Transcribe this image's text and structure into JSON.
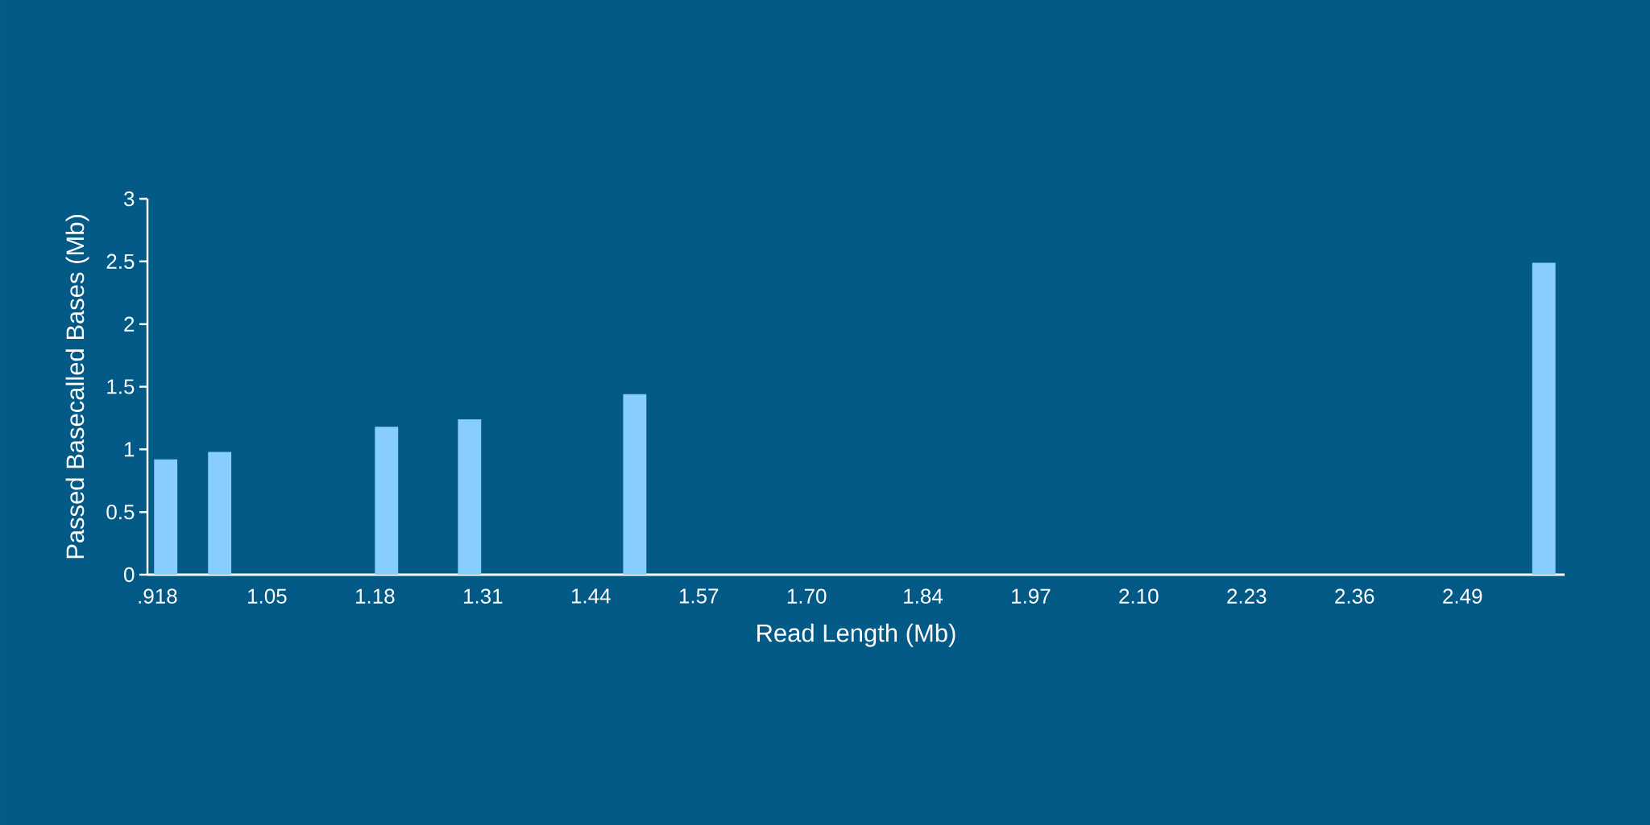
{
  "chart_data": {
    "type": "bar",
    "xlabel": "Read Length (Mb)",
    "ylabel": "Passed Basecalled Bases (Mb)",
    "x": [
      0.928,
      0.993,
      1.194,
      1.294,
      1.493,
      2.588
    ],
    "values": [
      0.92,
      0.98,
      1.18,
      1.24,
      1.44,
      2.49
    ],
    "color": "#87cefe",
    "xlim": [
      0.906,
      2.613
    ],
    "xticks": [
      {
        "value": 0.918,
        "label": ".918"
      },
      1.05,
      1.18,
      1.31,
      1.44,
      1.57,
      {
        "value": 1.7,
        "label": "1.70"
      },
      1.84,
      1.97,
      {
        "value": 2.1,
        "label": "2.10"
      },
      2.23,
      2.36,
      2.49
    ],
    "ylim": [
      0,
      3
    ],
    "yticks": [
      0,
      0.5,
      1,
      1.5,
      2,
      2.5,
      3
    ]
  }
}
